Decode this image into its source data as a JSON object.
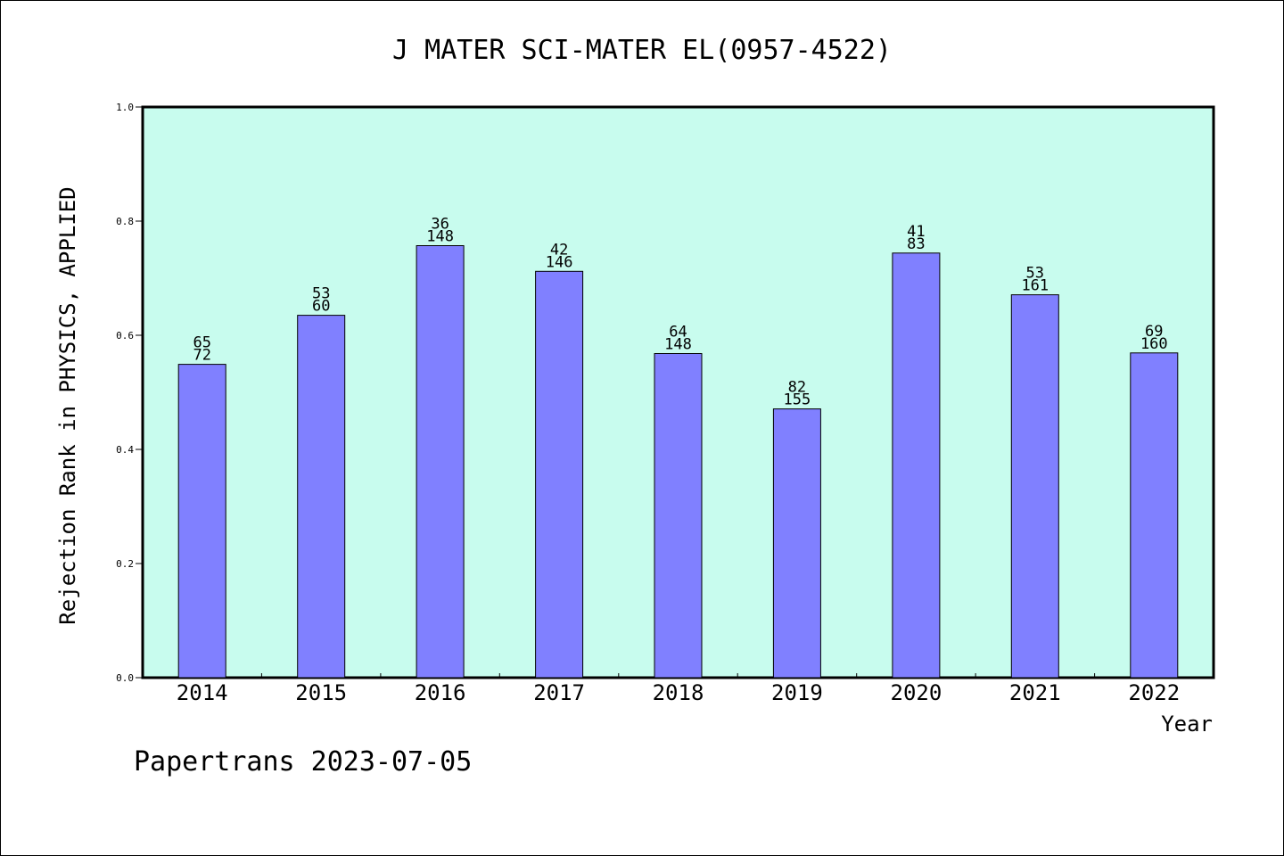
{
  "chart_data": {
    "type": "bar",
    "title": "J MATER SCI-MATER EL(0957-4522)",
    "xlabel": "Year",
    "ylabel": "Rejection Rank in PHYSICS, APPLIED",
    "footer": "Papertrans 2023-07-05",
    "categories": [
      "2014",
      "2015",
      "2016",
      "2017",
      "2018",
      "2019",
      "2020",
      "2021",
      "2022"
    ],
    "values": [
      0.549,
      0.635,
      0.757,
      0.712,
      0.568,
      0.471,
      0.744,
      0.671,
      0.569
    ],
    "labels_top": [
      "65",
      "53",
      "36",
      "42",
      "64",
      "82",
      "41",
      "53",
      "69"
    ],
    "labels_bottom": [
      "72",
      "60",
      "148",
      "146",
      "148",
      "155",
      "83",
      "161",
      "160"
    ],
    "ylim": [
      0,
      1.0
    ],
    "yticks": [
      "0.0",
      "0.2",
      "0.4",
      "0.6",
      "0.8",
      "1.0"
    ],
    "ytick_values": [
      0,
      0.2,
      0.4,
      0.6,
      0.8,
      1.0
    ],
    "grid": false,
    "colors": {
      "plot_background": "#c8fcee",
      "bar_fill": "#8080ff",
      "bar_stroke": "#000000",
      "axis": "#000000",
      "text": "#000000"
    }
  }
}
